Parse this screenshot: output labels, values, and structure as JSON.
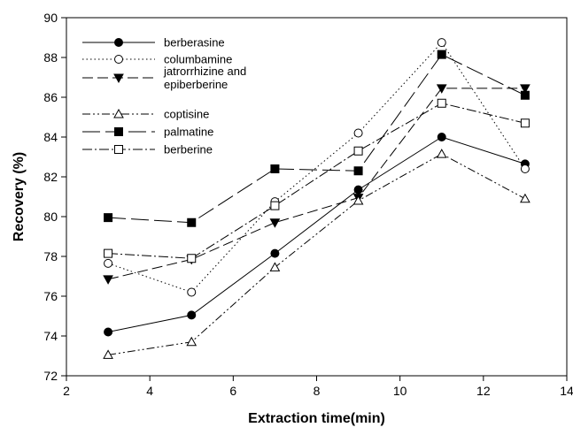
{
  "chart_data": {
    "type": "line",
    "xlabel": "Extraction time(min)",
    "ylabel": "Recovery (%)",
    "xlim": [
      2,
      14
    ],
    "ylim": [
      72,
      90
    ],
    "xticks": [
      2,
      4,
      6,
      8,
      10,
      12,
      14
    ],
    "yticks": [
      72,
      74,
      76,
      78,
      80,
      82,
      84,
      86,
      88,
      90
    ],
    "grid": false,
    "legend_position": "top-left",
    "x": [
      3,
      5,
      7,
      9,
      11,
      13
    ],
    "series": [
      {
        "name": "berberasine",
        "values": [
          74.2,
          75.05,
          78.15,
          81.35,
          84.0,
          82.65
        ],
        "marker": "circle-filled",
        "line": "solid"
      },
      {
        "name": "columbamine",
        "values": [
          77.65,
          76.2,
          80.75,
          84.2,
          88.75,
          82.4
        ],
        "marker": "circle-open",
        "line": "dotted"
      },
      {
        "name": "jatrorrhizine and epiberberine",
        "name_lines": [
          "jatrorrhizine and",
          "epiberberine"
        ],
        "values": [
          76.85,
          77.85,
          79.7,
          80.95,
          86.45,
          86.45
        ],
        "marker": "triangle-down-filled",
        "line": "dashed"
      },
      {
        "name": "coptisine",
        "values": [
          73.05,
          73.7,
          77.45,
          80.8,
          83.15,
          80.9
        ],
        "marker": "triangle-up-open",
        "line": "dash-dot-dot"
      },
      {
        "name": "palmatine",
        "values": [
          79.95,
          79.7,
          82.4,
          82.3,
          88.15,
          86.1
        ],
        "marker": "square-filled",
        "line": "long-dash"
      },
      {
        "name": "berberine",
        "values": [
          78.15,
          77.9,
          80.55,
          83.3,
          85.7,
          84.7
        ],
        "marker": "square-open",
        "line": "dash-dot"
      }
    ]
  }
}
